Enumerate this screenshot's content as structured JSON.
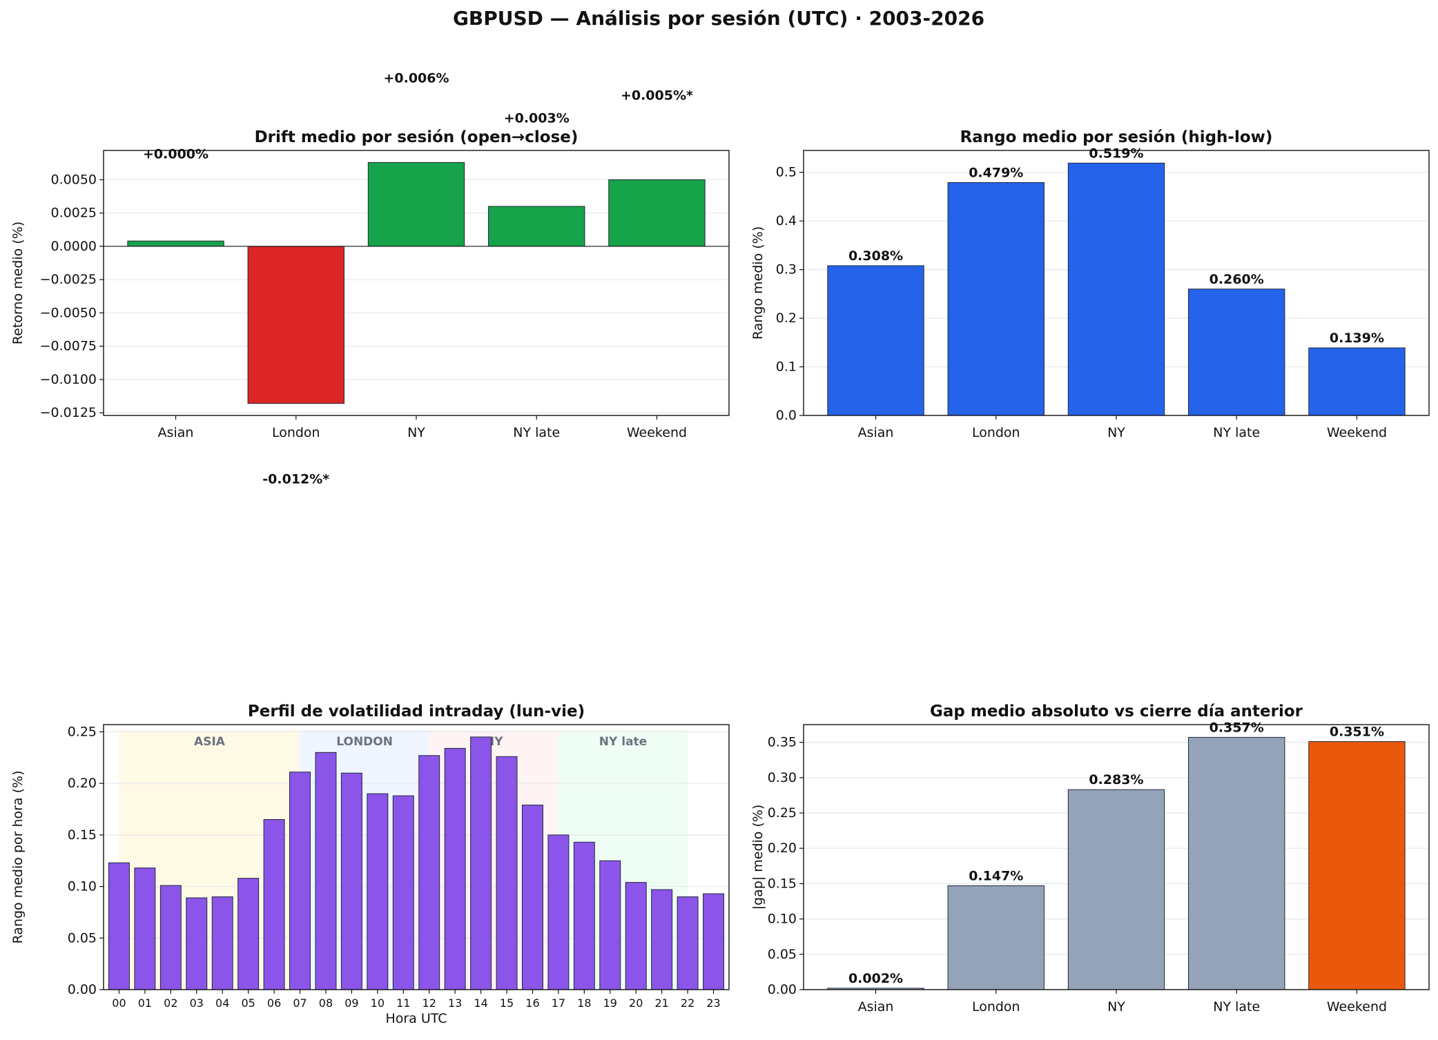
{
  "suptitle": "GBPUSD — Análisis por sesión (UTC) · 2003-2026",
  "chart_data": [
    {
      "type": "bar",
      "title": "Drift medio por sesión (open→close)",
      "ylabel": "Retorno medio (%)",
      "xlabel": "",
      "categories": [
        "Asian",
        "London",
        "NY",
        "NY late",
        "Weekend"
      ],
      "values": [
        0.0004,
        -0.0118,
        0.0063,
        0.003,
        0.005
      ],
      "data_labels": [
        "+0.000%",
        "-0.012%*",
        "+0.006%",
        "+0.003%",
        "+0.005%*"
      ],
      "ylim": [
        -0.0127,
        0.0072
      ],
      "yticks": [
        -0.0125,
        -0.01,
        -0.0075,
        -0.005,
        -0.0025,
        0.0,
        0.0025,
        0.005
      ],
      "ytick_labels": [
        "−0.0125",
        "−0.0100",
        "−0.0075",
        "−0.0050",
        "−0.0025",
        "0.0000",
        "0.0025",
        "0.0050"
      ],
      "colors": {
        "positive": "#16a34a",
        "negative": "#dc2626"
      },
      "grid": "y"
    },
    {
      "type": "bar",
      "title": "Rango medio por sesión (high-low)",
      "ylabel": "Rango medio (%)",
      "xlabel": "",
      "categories": [
        "Asian",
        "London",
        "NY",
        "NY late",
        "Weekend"
      ],
      "values": [
        0.308,
        0.479,
        0.519,
        0.26,
        0.139
      ],
      "data_labels": [
        "0.308%",
        "0.479%",
        "0.519%",
        "0.260%",
        "0.139%"
      ],
      "ylim": [
        0,
        0.545
      ],
      "yticks": [
        0.0,
        0.1,
        0.2,
        0.3,
        0.4,
        0.5
      ],
      "ytick_labels": [
        "0.0",
        "0.1",
        "0.2",
        "0.3",
        "0.4",
        "0.5"
      ],
      "colors": {
        "bar": "#2563eb"
      },
      "grid": "y"
    },
    {
      "type": "bar",
      "title": "Perfil de volatilidad intraday (lun-vie)",
      "ylabel": "Rango medio por hora (%)",
      "xlabel": "Hora UTC",
      "categories": [
        "00",
        "01",
        "02",
        "03",
        "04",
        "05",
        "06",
        "07",
        "08",
        "09",
        "10",
        "11",
        "12",
        "13",
        "14",
        "15",
        "16",
        "17",
        "18",
        "19",
        "20",
        "21",
        "22",
        "23"
      ],
      "values": [
        0.123,
        0.118,
        0.101,
        0.089,
        0.09,
        0.108,
        0.165,
        0.211,
        0.23,
        0.21,
        0.19,
        0.188,
        0.227,
        0.234,
        0.245,
        0.226,
        0.179,
        0.15,
        0.143,
        0.125,
        0.104,
        0.097,
        0.09,
        0.093
      ],
      "ylim": [
        0,
        0.257
      ],
      "yticks": [
        0.0,
        0.05,
        0.1,
        0.15,
        0.2,
        0.25
      ],
      "ytick_labels": [
        "0.00",
        "0.05",
        "0.10",
        "0.15",
        "0.20",
        "0.25"
      ],
      "session_bands": [
        {
          "label": "ASIA",
          "start": 0,
          "end": 7,
          "color": "#fef3c7"
        },
        {
          "label": "LONDON",
          "start": 7,
          "end": 12,
          "color": "#dbeafe"
        },
        {
          "label": "NY",
          "start": 12,
          "end": 17,
          "color": "#fce7e7"
        },
        {
          "label": "NY late",
          "start": 17,
          "end": 22,
          "color": "#dcfce7"
        }
      ],
      "colors": {
        "bar": "#8b55ea",
        "band_label": "#6b7280"
      },
      "grid": "y"
    },
    {
      "type": "bar",
      "title": "Gap medio absoluto vs cierre día anterior",
      "ylabel": "|gap| medio (%)",
      "xlabel": "",
      "categories": [
        "Asian",
        "London",
        "NY",
        "NY late",
        "Weekend"
      ],
      "values": [
        0.002,
        0.147,
        0.283,
        0.357,
        0.351
      ],
      "data_labels": [
        "0.002%",
        "0.147%",
        "0.283%",
        "0.357%",
        "0.351%"
      ],
      "ylim": [
        0,
        0.375
      ],
      "yticks": [
        0.0,
        0.05,
        0.1,
        0.15,
        0.2,
        0.25,
        0.3,
        0.35
      ],
      "ytick_labels": [
        "0.00",
        "0.05",
        "0.10",
        "0.15",
        "0.20",
        "0.25",
        "0.30",
        "0.35"
      ],
      "colors": {
        "bar": "#94a3b8",
        "highlight": "#ea580c",
        "highlight_index": 4
      },
      "grid": "y"
    }
  ]
}
